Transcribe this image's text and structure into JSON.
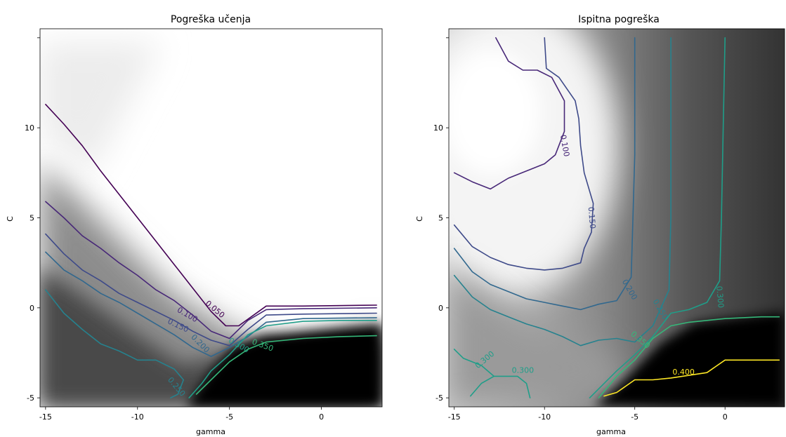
{
  "colors": {
    "level_0_050": "#440154",
    "level_0_100": "#482878",
    "level_0_150": "#3e4a89",
    "level_0_200": "#31688e",
    "level_0_250": "#26828e",
    "level_0_300": "#1f9e89",
    "level_0_350": "#35b779",
    "level_0_400": "#fde725"
  },
  "chart_data": [
    {
      "type": "contour",
      "title": "Pogreška učenja",
      "xlabel": "gamma",
      "ylabel": "C",
      "xlim": [
        -15.3,
        3.3
      ],
      "ylim": [
        -5.5,
        15.5
      ],
      "x_ticks": [
        -15,
        -10,
        -5,
        0
      ],
      "x_tick_labels": [
        "-15",
        "-10",
        "-5",
        "0"
      ],
      "y_ticks": [
        -5,
        0,
        5,
        10
      ],
      "y_tick_labels": [
        "-5",
        "0",
        "5",
        "10"
      ],
      "background": "grayscale heatmap: white = low error, black = high error",
      "levels": [
        {
          "level": 0.05,
          "label": "0.050",
          "label_at": [
            -5.8,
            -0.1
          ],
          "label_angle": 40,
          "points": [
            [
              -15,
              11.3
            ],
            [
              -14,
              10.2
            ],
            [
              -13,
              9
            ],
            [
              -12,
              7.6
            ],
            [
              -11,
              6.3
            ],
            [
              -10,
              5
            ],
            [
              -9,
              3.7
            ],
            [
              -8,
              2.4
            ],
            [
              -7,
              1.1
            ],
            [
              -6,
              -0.2
            ],
            [
              -5.2,
              -1
            ],
            [
              -4.5,
              -1
            ],
            [
              -3,
              0.1
            ],
            [
              -1,
              0.1
            ],
            [
              3,
              0.15
            ]
          ]
        },
        {
          "level": 0.1,
          "label": "0.100",
          "label_at": [
            -7.3,
            -0.4
          ],
          "label_angle": 30,
          "points": [
            [
              -15,
              5.9
            ],
            [
              -14,
              5
            ],
            [
              -13,
              4
            ],
            [
              -12,
              3.3
            ],
            [
              -11,
              2.5
            ],
            [
              -10,
              1.8
            ],
            [
              -9,
              1
            ],
            [
              -8,
              0.4
            ],
            [
              -7,
              -0.4
            ],
            [
              -6,
              -1.3
            ],
            [
              -5,
              -1.7
            ],
            [
              -4,
              -0.7
            ],
            [
              -3,
              -0.1
            ],
            [
              -1,
              -0.05
            ],
            [
              3,
              0
            ]
          ]
        },
        {
          "level": 0.15,
          "label": "0.150",
          "label_at": [
            -7.8,
            -1.0
          ],
          "label_angle": 25,
          "points": [
            [
              -15,
              4.1
            ],
            [
              -14,
              3
            ],
            [
              -13,
              2.1
            ],
            [
              -12,
              1.5
            ],
            [
              -11,
              0.8
            ],
            [
              -10,
              0.3
            ],
            [
              -9,
              -0.2
            ],
            [
              -8,
              -0.7
            ],
            [
              -7,
              -1.3
            ],
            [
              -6,
              -1.8
            ],
            [
              -5,
              -2.1
            ],
            [
              -4,
              -1.2
            ],
            [
              -3,
              -0.4
            ],
            [
              -1,
              -0.35
            ],
            [
              3,
              -0.3
            ]
          ]
        },
        {
          "level": 0.2,
          "label": "0.200",
          "label_at": [
            -6.6,
            -2.0
          ],
          "label_angle": 45,
          "points": [
            [
              -15,
              3.1
            ],
            [
              -14,
              2.1
            ],
            [
              -13,
              1.5
            ],
            [
              -12,
              0.8
            ],
            [
              -11,
              0.3
            ],
            [
              -10,
              -0.3
            ],
            [
              -9,
              -0.9
            ],
            [
              -8,
              -1.5
            ],
            [
              -7,
              -2.2
            ],
            [
              -6,
              -2.7
            ],
            [
              -5,
              -2.2
            ],
            [
              -4,
              -1.6
            ],
            [
              -3,
              -0.8
            ],
            [
              -1,
              -0.6
            ],
            [
              3,
              -0.55
            ]
          ]
        },
        {
          "level": 0.25,
          "label": "0.250",
          "label_at": [
            -7.9,
            -4.4
          ],
          "label_angle": 50,
          "points": [
            [
              -15,
              1
            ],
            [
              -14,
              -0.3
            ],
            [
              -13,
              -1.2
            ],
            [
              -12,
              -2
            ],
            [
              -11,
              -2.4
            ],
            [
              -10,
              -2.9
            ],
            [
              -9,
              -2.9
            ],
            [
              -8,
              -3.4
            ],
            [
              -7.5,
              -4
            ],
            [
              -7.8,
              -4.8
            ],
            [
              -8.2,
              -5
            ]
          ]
        },
        {
          "level": 0.3,
          "label": "0.300",
          "label_at": [
            -4.5,
            -2.1
          ],
          "label_angle": 30,
          "points": [
            [
              -7.2,
              -5
            ],
            [
              -6.5,
              -4.2
            ],
            [
              -6,
              -3.5
            ],
            [
              -5,
              -2.6
            ],
            [
              -4,
              -1.5
            ],
            [
              -3,
              -1
            ],
            [
              -1,
              -0.75
            ],
            [
              1,
              -0.7
            ],
            [
              3,
              -0.7
            ]
          ]
        },
        {
          "level": 0.35,
          "label": "0.350",
          "label_at": [
            -3.2,
            -2.1
          ],
          "label_angle": 20,
          "points": [
            [
              -6.8,
              -4.8
            ],
            [
              -6,
              -4
            ],
            [
              -5,
              -3
            ],
            [
              -4,
              -2.3
            ],
            [
              -3,
              -1.9
            ],
            [
              -1,
              -1.7
            ],
            [
              1,
              -1.6
            ],
            [
              3,
              -1.55
            ]
          ]
        }
      ]
    },
    {
      "type": "contour",
      "title": "Ispitna pogreška",
      "xlabel": "gamma",
      "ylabel": "C",
      "xlim": [
        -15.3,
        3.3
      ],
      "ylim": [
        -5.5,
        15.5
      ],
      "x_ticks": [
        -15,
        -10,
        -5,
        0
      ],
      "x_tick_labels": [
        "-15",
        "-10",
        "-5",
        "0"
      ],
      "y_ticks": [
        -5,
        0,
        5,
        10
      ],
      "y_tick_labels": [
        "-5",
        "0",
        "5",
        "10"
      ],
      "background": "grayscale heatmap: white = low error, black = high error",
      "levels": [
        {
          "level": 0.1,
          "label": "0.100",
          "label_at": [
            -8.9,
            9.0
          ],
          "label_angle": 80,
          "points": [
            [
              -15,
              7.5
            ],
            [
              -14,
              7
            ],
            [
              -13,
              6.6
            ],
            [
              -12,
              7.2
            ],
            [
              -11,
              7.6
            ],
            [
              -10,
              8
            ],
            [
              -9.4,
              8.5
            ],
            [
              -8.9,
              9.8
            ],
            [
              -8.9,
              11.5
            ],
            [
              -9.6,
              12.8
            ],
            [
              -10.4,
              13.2
            ],
            [
              -11.2,
              13.2
            ],
            [
              -12,
              13.7
            ],
            [
              -12.7,
              15
            ]
          ]
        },
        {
          "level": 0.15,
          "label": "0.150",
          "label_at": [
            -7.4,
            5.0
          ],
          "label_angle": 85,
          "points": [
            [
              -15,
              4.6
            ],
            [
              -14,
              3.4
            ],
            [
              -13,
              2.8
            ],
            [
              -12,
              2.4
            ],
            [
              -11,
              2.2
            ],
            [
              -10,
              2.1
            ],
            [
              -9,
              2.2
            ],
            [
              -8,
              2.5
            ],
            [
              -7.8,
              3.3
            ],
            [
              -7.4,
              4.2
            ],
            [
              -7.3,
              5.8
            ],
            [
              -7.8,
              7.5
            ],
            [
              -8,
              9
            ],
            [
              -8.1,
              10.5
            ],
            [
              -8.3,
              11.5
            ],
            [
              -9.2,
              12.8
            ],
            [
              -9.9,
              13.3
            ],
            [
              -10,
              15
            ]
          ]
        },
        {
          "level": 0.2,
          "label": "0.200",
          "label_at": [
            -5.3,
            1.0
          ],
          "label_angle": 60,
          "points": [
            [
              -15,
              3.3
            ],
            [
              -14,
              2
            ],
            [
              -13,
              1.3
            ],
            [
              -12,
              0.9
            ],
            [
              -11,
              0.5
            ],
            [
              -10,
              0.3
            ],
            [
              -9,
              0.1
            ],
            [
              -8,
              -0.1
            ],
            [
              -7,
              0.2
            ],
            [
              -6,
              0.4
            ],
            [
              -5.2,
              1.7
            ],
            [
              -5.1,
              5
            ],
            [
              -5,
              8.5
            ],
            [
              -5,
              11
            ],
            [
              -5,
              15
            ]
          ]
        },
        {
          "level": 0.25,
          "label": "0.250",
          "label_at": [
            -3.6,
            -0.1
          ],
          "label_angle": 60,
          "points": [
            [
              -15,
              1.8
            ],
            [
              -14,
              0.6
            ],
            [
              -13,
              -0.1
            ],
            [
              -12,
              -0.5
            ],
            [
              -11,
              -0.9
            ],
            [
              -10,
              -1.2
            ],
            [
              -9,
              -1.6
            ],
            [
              -8,
              -2.1
            ],
            [
              -7,
              -1.8
            ],
            [
              -6,
              -1.7
            ],
            [
              -5,
              -1.9
            ],
            [
              -4,
              -1
            ],
            [
              -3.1,
              1
            ],
            [
              -3,
              5
            ],
            [
              -3,
              10
            ],
            [
              -3,
              15
            ]
          ]
        },
        {
          "level": 0.3,
          "label": "0.300",
          "label_at": [
            -0.3,
            0.6
          ],
          "label_angle": 85,
          "points": [
            [
              -7.5,
              -5
            ],
            [
              -6,
              -3.5
            ],
            [
              -5,
              -2.6
            ],
            [
              -4,
              -1.6
            ],
            [
              -3,
              -0.3
            ],
            [
              -2,
              -0.1
            ],
            [
              -1,
              0.3
            ],
            [
              -0.3,
              1.5
            ],
            [
              -0.2,
              5
            ],
            [
              -0.1,
              10
            ],
            [
              0,
              15
            ]
          ]
        },
        {
          "level": 0.3,
          "label": "0.300",
          "label_at": [
            -13.3,
            -2.9
          ],
          "label_angle": -40,
          "points": [
            [
              -15,
              -2.3
            ],
            [
              -14.5,
              -2.8
            ],
            [
              -13.5,
              -3.2
            ],
            [
              -12.8,
              -3.8
            ],
            [
              -11.5,
              -3.8
            ],
            [
              -11,
              -4.2
            ],
            [
              -10.8,
              -5
            ]
          ]
        },
        {
          "level": 0.3,
          "label": "0.300",
          "label_at": [
            -11.2,
            -3.5
          ],
          "label_angle": 0,
          "points": [
            [
              -14.1,
              -4.9
            ],
            [
              -13.5,
              -4.2
            ],
            [
              -12.8,
              -3.8
            ]
          ]
        },
        {
          "level": 0.35,
          "label": "0.350",
          "label_at": [
            -4.7,
            -1.8
          ],
          "label_angle": 40,
          "points": [
            [
              -7,
              -5
            ],
            [
              -6,
              -3.8
            ],
            [
              -5,
              -2.9
            ],
            [
              -4,
              -1.7
            ],
            [
              -3,
              -1
            ],
            [
              -2,
              -0.8
            ],
            [
              -1,
              -0.7
            ],
            [
              0,
              -0.6
            ],
            [
              2,
              -0.5
            ],
            [
              3,
              -0.5
            ]
          ]
        },
        {
          "level": 0.4,
          "label": "0.400",
          "label_at": [
            -2.3,
            -3.6
          ],
          "label_angle": 0,
          "points": [
            [
              -6.7,
              -4.9
            ],
            [
              -6,
              -4.7
            ],
            [
              -5,
              -4
            ],
            [
              -4,
              -4
            ],
            [
              -3,
              -3.9
            ],
            [
              -1,
              -3.6
            ],
            [
              0,
              -2.9
            ],
            [
              1,
              -2.9
            ],
            [
              3,
              -2.9
            ]
          ]
        }
      ]
    }
  ]
}
